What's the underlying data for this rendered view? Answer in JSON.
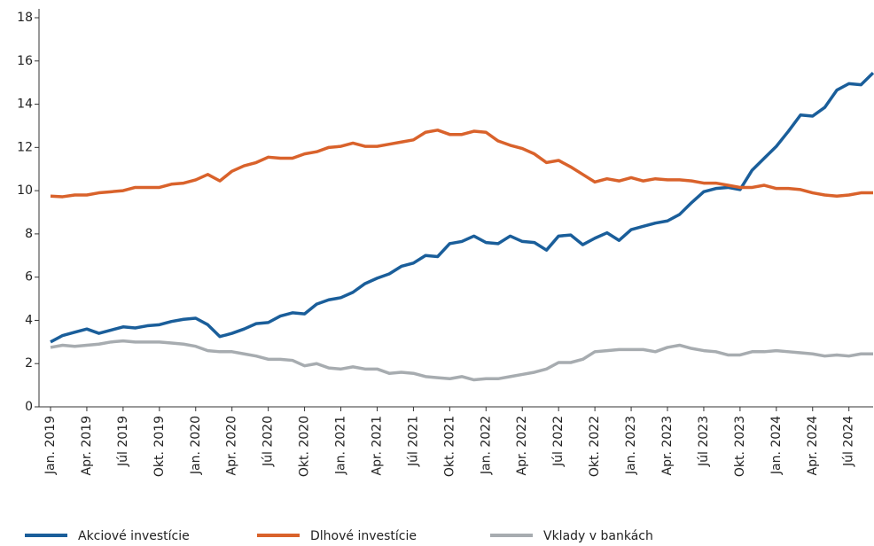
{
  "chart_data": {
    "type": "line",
    "categories": [
      "Jan. 2019",
      null,
      null,
      "Apr. 2019",
      null,
      null,
      "Júl 2019",
      null,
      null,
      "Okt. 2019",
      null,
      null,
      "Jan. 2020",
      null,
      null,
      "Apr. 2020",
      null,
      null,
      "Júl 2020",
      null,
      null,
      "Okt. 2020",
      null,
      null,
      "Jan. 2021",
      null,
      null,
      "Apr. 2021",
      null,
      null,
      "Júl 2021",
      null,
      null,
      "Okt. 2021",
      null,
      null,
      "Jan. 2022",
      null,
      null,
      "Apr. 2022",
      null,
      null,
      "Júl 2022",
      null,
      null,
      "Okt. 2022",
      null,
      null,
      "Jan. 2023",
      null,
      null,
      "Apr. 2023",
      null,
      null,
      "Júl 2023",
      null,
      null,
      "Okt. 2023",
      null,
      null,
      "Jan. 2024",
      null,
      null,
      "Apr. 2024",
      null,
      null,
      "Júl 2024",
      null,
      null
    ],
    "series": [
      {
        "name": "Akciové investície",
        "color": "#1a5e9a",
        "values": [
          3.0,
          3.3,
          3.45,
          3.6,
          3.4,
          3.55,
          3.7,
          3.65,
          3.75,
          3.8,
          3.95,
          4.05,
          4.1,
          3.8,
          3.25,
          3.4,
          3.6,
          3.85,
          3.9,
          4.2,
          4.35,
          4.3,
          4.75,
          4.95,
          5.05,
          5.3,
          5.7,
          5.95,
          6.15,
          6.5,
          6.65,
          7.0,
          6.95,
          7.55,
          7.65,
          7.9,
          7.6,
          7.55,
          7.9,
          7.65,
          7.6,
          7.25,
          7.9,
          7.95,
          7.5,
          7.8,
          8.05,
          7.7,
          8.2,
          8.35,
          8.5,
          8.6,
          8.9,
          9.45,
          9.95,
          10.1,
          10.15,
          10.05,
          10.95,
          11.5,
          12.05,
          12.75,
          13.5,
          13.45,
          13.85,
          14.65,
          14.95,
          14.9,
          15.45
        ]
      },
      {
        "name": "Dlhové investície",
        "color": "#d9622b",
        "values": [
          9.75,
          9.72,
          9.8,
          9.8,
          9.9,
          9.95,
          10.0,
          10.15,
          10.15,
          10.15,
          10.3,
          10.35,
          10.5,
          10.75,
          10.45,
          10.9,
          11.15,
          11.3,
          11.55,
          11.5,
          11.5,
          11.7,
          11.8,
          12.0,
          12.05,
          12.2,
          12.05,
          12.05,
          12.15,
          12.25,
          12.35,
          12.7,
          12.8,
          12.6,
          12.6,
          12.75,
          12.7,
          12.3,
          12.1,
          11.95,
          11.7,
          11.3,
          11.4,
          11.1,
          10.75,
          10.4,
          10.55,
          10.45,
          10.6,
          10.45,
          10.55,
          10.5,
          10.5,
          10.45,
          10.35,
          10.35,
          10.25,
          10.15,
          10.15,
          10.25,
          10.1,
          10.1,
          10.05,
          9.9,
          9.8,
          9.75,
          9.8,
          9.9,
          9.9
        ]
      },
      {
        "name": "Vklady v bankách",
        "color": "#a7acb0",
        "values": [
          2.75,
          2.85,
          2.8,
          2.85,
          2.9,
          3.0,
          3.05,
          3.0,
          3.0,
          3.0,
          2.95,
          2.9,
          2.8,
          2.6,
          2.55,
          2.55,
          2.45,
          2.35,
          2.2,
          2.2,
          2.15,
          1.9,
          2.0,
          1.8,
          1.75,
          1.85,
          1.75,
          1.75,
          1.55,
          1.6,
          1.55,
          1.4,
          1.35,
          1.3,
          1.4,
          1.25,
          1.3,
          1.3,
          1.4,
          1.5,
          1.6,
          1.75,
          2.05,
          2.05,
          2.2,
          2.55,
          2.6,
          2.65,
          2.65,
          2.65,
          2.55,
          2.75,
          2.85,
          2.7,
          2.6,
          2.55,
          2.4,
          2.4,
          2.55,
          2.55,
          2.6,
          2.55,
          2.5,
          2.45,
          2.35,
          2.4,
          2.35,
          2.45,
          2.45
        ]
      }
    ],
    "ylim": [
      0,
      18
    ],
    "yticks": [
      0,
      2,
      4,
      6,
      8,
      10,
      12,
      14,
      16,
      18
    ],
    "grid": false
  }
}
